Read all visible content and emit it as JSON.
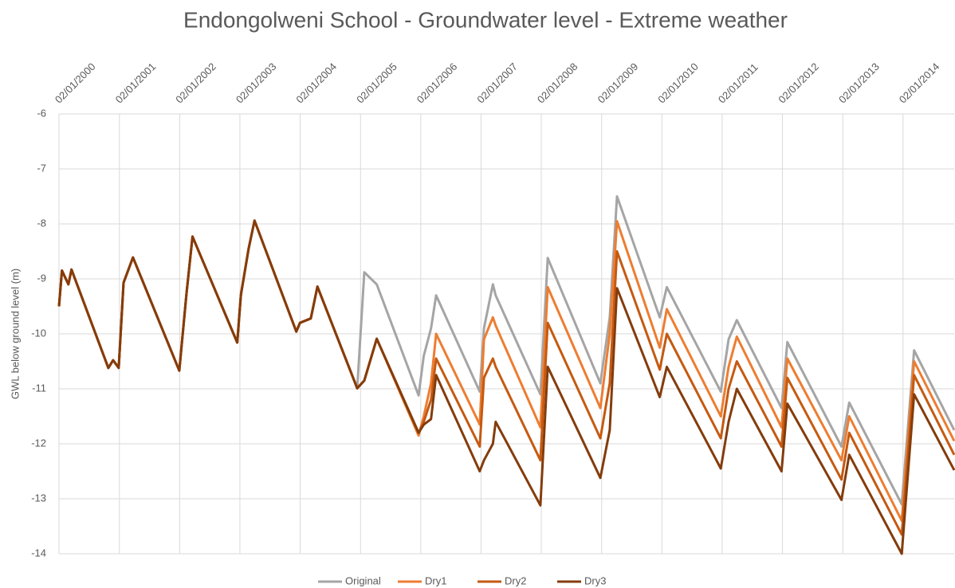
{
  "chart_data": {
    "type": "line",
    "title": "Endongolweni School - Groundwater level - Extreme weather",
    "y_label": "GWL below ground level (m)",
    "x": [
      "2000-01-02",
      "2000-01-20",
      "2000-02-28",
      "2000-03-18",
      "2000-10-27",
      "2000-11-25",
      "2000-12-29",
      "2001-01-27",
      "2001-03-25",
      "2001-12-31",
      "2002-02-13",
      "2002-03-21",
      "2002-12-17",
      "2003-01-08",
      "2003-02-24",
      "2003-04-01",
      "2003-12-10",
      "2004-01-01",
      "2004-03-07",
      "2004-04-16",
      "2004-12-13",
      "2005-01-25",
      "2005-04-10",
      "2005-12-20",
      "2006-01-20",
      "2006-03-05",
      "2006-04-05",
      "2006-12-25",
      "2007-01-20",
      "2007-03-15",
      "2007-04-01",
      "2007-12-28",
      "2008-02-10",
      "2008-12-25",
      "2009-02-20",
      "2009-04-05",
      "2009-12-20",
      "2010-02-01",
      "2010-12-25",
      "2011-02-10",
      "2011-04-01",
      "2011-12-28",
      "2012-02-01",
      "2012-12-25",
      "2013-02-10",
      "2013-12-25",
      "2014-03-10",
      "2014-11-08"
    ],
    "series": [
      {
        "name": "Original",
        "color": "#a5a5a5",
        "values": [
          -9.5,
          -8.85,
          -9.1,
          -8.83,
          -10.62,
          -10.48,
          -10.62,
          -9.07,
          -8.61,
          -10.67,
          -9.26,
          -8.23,
          -10.16,
          -9.29,
          -8.45,
          -7.94,
          -9.96,
          -9.8,
          -9.72,
          -9.14,
          -10.99,
          -8.88,
          -9.1,
          -11.12,
          -10.4,
          -9.9,
          -9.3,
          -11.05,
          -9.9,
          -9.1,
          -9.3,
          -11.1,
          -8.62,
          -10.9,
          -9.7,
          -7.5,
          -9.7,
          -9.15,
          -11.05,
          -10.1,
          -9.75,
          -11.35,
          -10.15,
          -12.05,
          -11.25,
          -13.1,
          -10.3,
          -11.75
        ]
      },
      {
        "name": "Dry1",
        "color": "#ed7d31",
        "values": [
          -9.5,
          -8.85,
          -9.1,
          -8.83,
          -10.62,
          -10.48,
          -10.62,
          -9.07,
          -8.61,
          -10.67,
          -9.26,
          -8.23,
          -10.16,
          -9.29,
          -8.45,
          -7.94,
          -9.96,
          -9.8,
          -9.72,
          -9.14,
          -10.99,
          -10.85,
          -10.09,
          -11.85,
          -11.5,
          -10.9,
          -10.0,
          -11.65,
          -10.1,
          -9.7,
          -9.85,
          -11.7,
          -9.15,
          -11.35,
          -10.0,
          -7.95,
          -10.25,
          -9.55,
          -11.5,
          -10.6,
          -10.05,
          -11.7,
          -10.45,
          -12.3,
          -11.5,
          -13.4,
          -10.5,
          -11.95
        ]
      },
      {
        "name": "Dry2",
        "color": "#c55a11",
        "values": [
          -9.5,
          -8.85,
          -9.1,
          -8.83,
          -10.62,
          -10.48,
          -10.62,
          -9.07,
          -8.61,
          -10.67,
          -9.26,
          -8.23,
          -10.16,
          -9.29,
          -8.45,
          -7.94,
          -9.96,
          -9.8,
          -9.72,
          -9.14,
          -10.99,
          -10.85,
          -10.09,
          -11.8,
          -11.6,
          -11.2,
          -10.45,
          -12.05,
          -10.8,
          -10.45,
          -10.6,
          -12.3,
          -9.8,
          -11.9,
          -10.9,
          -8.5,
          -10.65,
          -10.0,
          -11.9,
          -11.0,
          -10.5,
          -12.05,
          -10.8,
          -12.65,
          -11.8,
          -13.65,
          -10.75,
          -12.2
        ]
      },
      {
        "name": "Dry3",
        "color": "#843c0c",
        "values": [
          -9.5,
          -8.85,
          -9.1,
          -8.83,
          -10.62,
          -10.48,
          -10.62,
          -9.07,
          -8.61,
          -10.67,
          -9.26,
          -8.23,
          -10.16,
          -9.29,
          -8.45,
          -7.94,
          -9.96,
          -9.8,
          -9.72,
          -9.14,
          -10.99,
          -10.85,
          -10.09,
          -11.8,
          -11.65,
          -11.55,
          -10.75,
          -12.5,
          -12.3,
          -12.0,
          -11.6,
          -13.12,
          -10.6,
          -12.62,
          -11.75,
          -9.17,
          -11.15,
          -10.6,
          -12.45,
          -11.6,
          -11.0,
          -12.5,
          -11.27,
          -13.02,
          -12.2,
          -14.0,
          -11.1,
          -12.48
        ]
      }
    ],
    "xlim": [
      "2000-01-02",
      "2014-11-08"
    ],
    "xticks": [
      {
        "value": "2000-01-02",
        "label": "02/01/2000"
      },
      {
        "value": "2001-01-02",
        "label": "02/01/2001"
      },
      {
        "value": "2002-01-02",
        "label": "02/01/2002"
      },
      {
        "value": "2003-01-02",
        "label": "02/01/2003"
      },
      {
        "value": "2004-01-02",
        "label": "02/01/2004"
      },
      {
        "value": "2005-01-02",
        "label": "02/01/2005"
      },
      {
        "value": "2006-01-02",
        "label": "02/01/2006"
      },
      {
        "value": "2007-01-02",
        "label": "02/01/2007"
      },
      {
        "value": "2008-01-02",
        "label": "02/01/2008"
      },
      {
        "value": "2009-01-02",
        "label": "02/01/2009"
      },
      {
        "value": "2010-01-02",
        "label": "02/01/2010"
      },
      {
        "value": "2011-01-02",
        "label": "02/01/2011"
      },
      {
        "value": "2012-01-02",
        "label": "02/01/2012"
      },
      {
        "value": "2013-01-02",
        "label": "02/01/2013"
      },
      {
        "value": "2014-01-02",
        "label": "02/01/2014"
      }
    ],
    "ylim": [
      -14,
      -6
    ],
    "yticks": [
      -6,
      -7,
      -8,
      -9,
      -10,
      -11,
      -12,
      -13,
      -14
    ],
    "grid": true,
    "legend": "bottom"
  }
}
